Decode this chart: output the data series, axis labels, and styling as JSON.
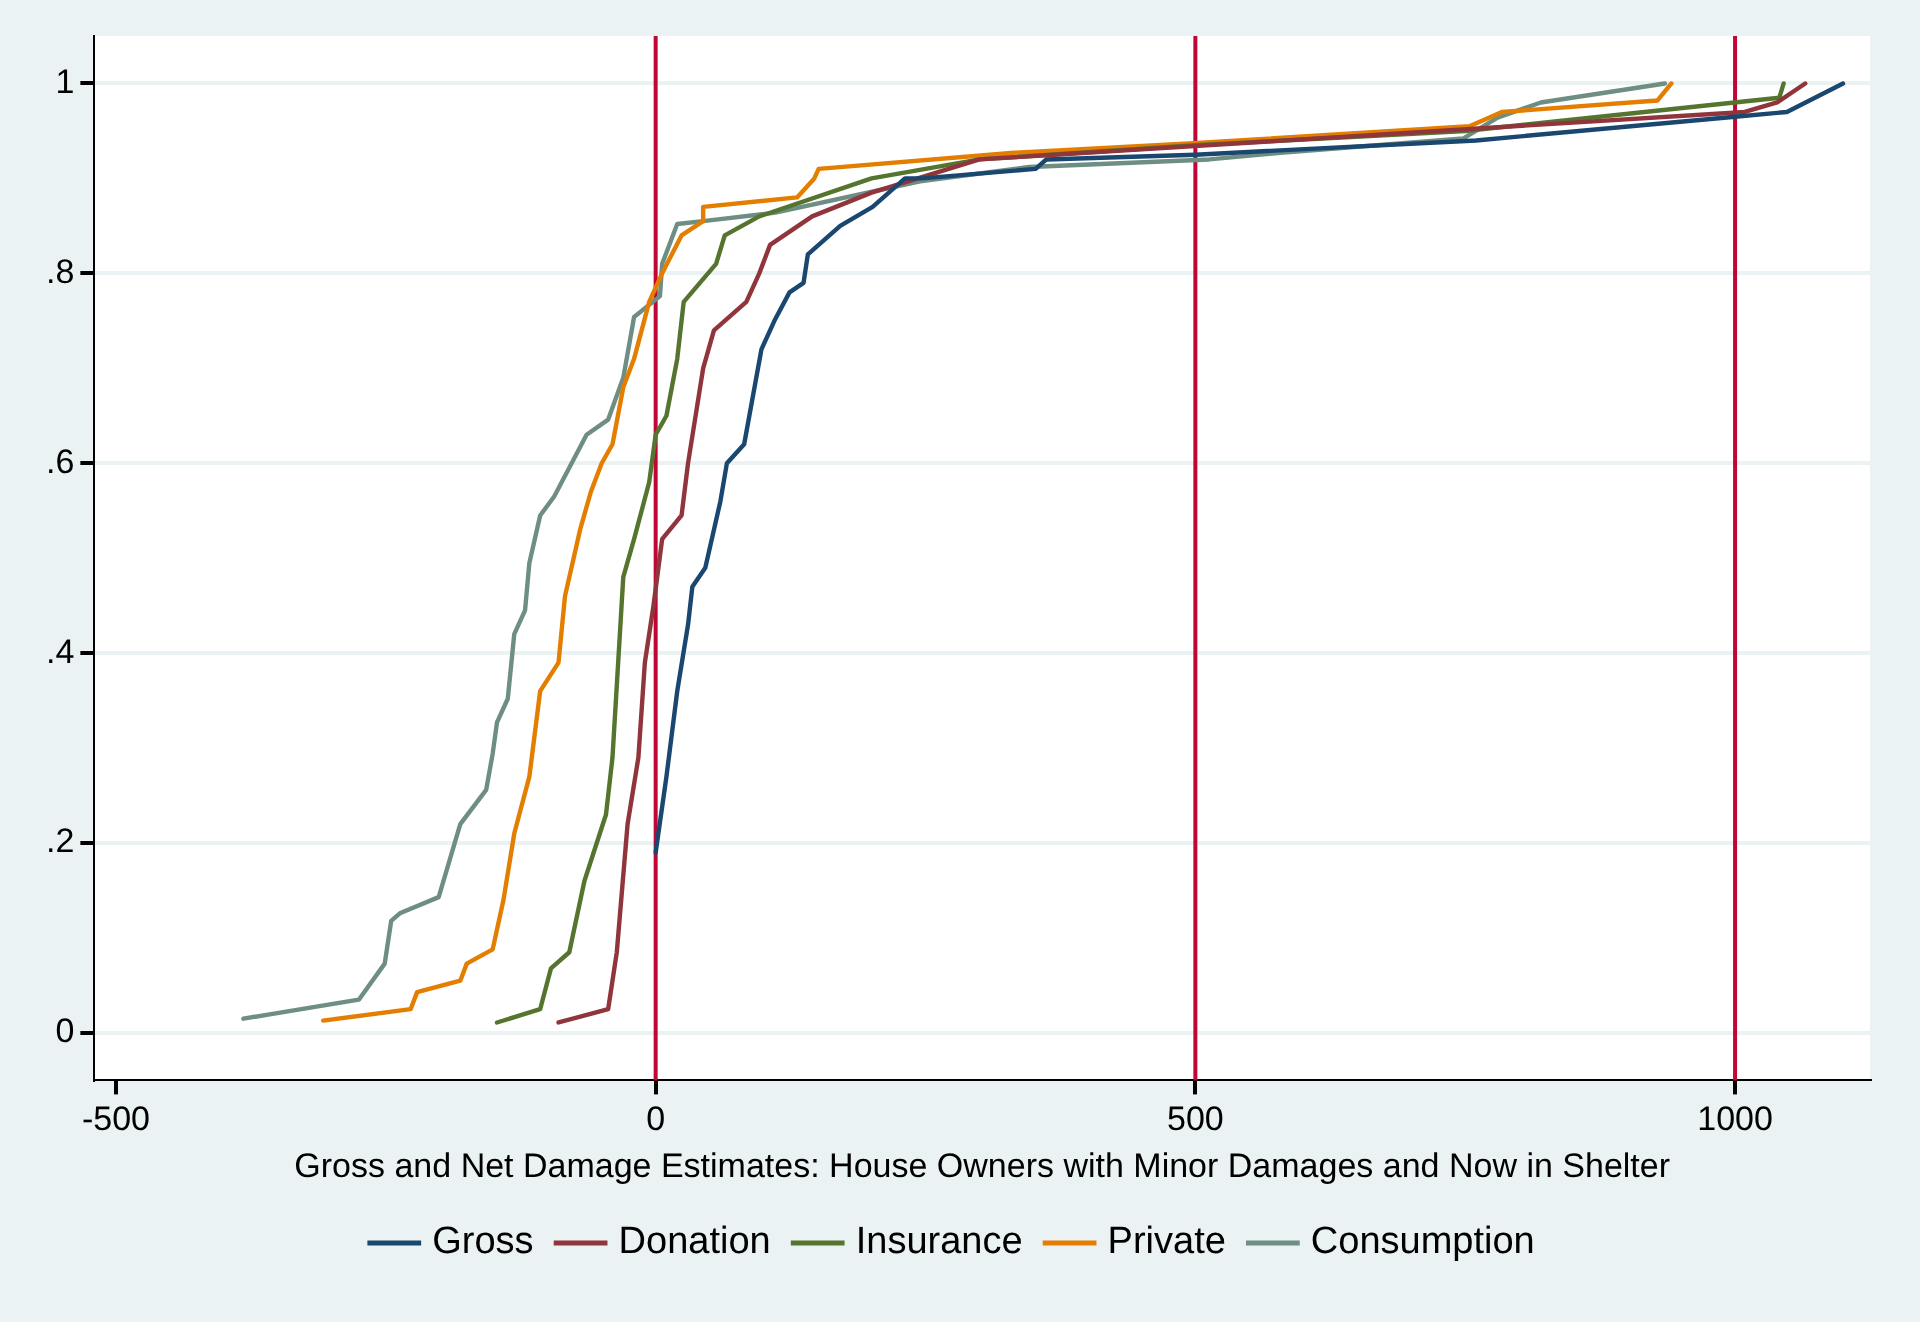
{
  "chart_data": {
    "type": "line",
    "xlabel": "Gross and Net Damage Estimates: House Owners with Minor Damages and Now in Shelter",
    "xlim": [
      -520,
      1125
    ],
    "xticks": [
      -500,
      0,
      500,
      1000
    ],
    "ylim": [
      -0.05,
      1.05
    ],
    "yticks": [
      {
        "value": 0,
        "label": "0"
      },
      {
        "value": 0.2,
        "label": ".2"
      },
      {
        "value": 0.4,
        "label": ".4"
      },
      {
        "value": 0.6,
        "label": ".6"
      },
      {
        "value": 0.8,
        "label": ".8"
      },
      {
        "value": 1,
        "label": "1"
      }
    ],
    "grid": "y",
    "legend": "bottom",
    "marker": "none",
    "line_style": "solid",
    "ref_lines": [
      {
        "axis": "x",
        "value": 0,
        "color": "#c10534"
      },
      {
        "axis": "x",
        "value": 500,
        "color": "#c10534"
      },
      {
        "axis": "x",
        "value": 1000,
        "color": "#c10534"
      }
    ],
    "series": [
      {
        "name": "Gross",
        "color": "#1a476f",
        "x": [
          0,
          10,
          20,
          30,
          34,
          46,
          60,
          66,
          82,
          98,
          110,
          124,
          137,
          141,
          151,
          171,
          201,
          231,
          247,
          352,
          362,
          500,
          760,
          1000,
          1048,
          1100
        ],
        "values": [
          0.19,
          0.27,
          0.36,
          0.43,
          0.47,
          0.49,
          0.56,
          0.6,
          0.62,
          0.72,
          0.75,
          0.78,
          0.79,
          0.82,
          0.83,
          0.85,
          0.87,
          0.9,
          0.9,
          0.91,
          0.92,
          0.925,
          0.94,
          0.965,
          0.97,
          1.0
        ]
      },
      {
        "name": "Donation",
        "color": "#90353b",
        "x": [
          -90,
          -44,
          -36,
          -26,
          -16,
          -10,
          -2,
          6,
          24,
          30,
          44,
          54,
          84,
          96,
          106,
          145,
          200,
          300,
          1009,
          1039,
          1065
        ],
        "values": [
          0.011,
          0.025,
          0.085,
          0.22,
          0.29,
          0.39,
          0.45,
          0.52,
          0.545,
          0.6,
          0.7,
          0.74,
          0.77,
          0.8,
          0.83,
          0.86,
          0.885,
          0.92,
          0.97,
          0.98,
          1.0
        ]
      },
      {
        "name": "Insurance",
        "color": "#55752f",
        "x": [
          -147,
          -107,
          -97,
          -80,
          -66,
          -46,
          -40,
          -30,
          -20,
          -6,
          0,
          10,
          20,
          26,
          56,
          64,
          96,
          200,
          300,
          500,
          750,
          1041,
          1045
        ],
        "values": [
          0.011,
          0.025,
          0.068,
          0.085,
          0.16,
          0.23,
          0.29,
          0.48,
          0.52,
          0.58,
          0.63,
          0.65,
          0.71,
          0.77,
          0.81,
          0.84,
          0.86,
          0.9,
          0.92,
          0.935,
          0.95,
          0.985,
          1.0
        ]
      },
      {
        "name": "Private",
        "color": "#e37e00",
        "x": [
          -308,
          -227,
          -221,
          -181,
          -175,
          -151,
          -141,
          -131,
          -117,
          -107,
          -90,
          -84,
          -70,
          -60,
          -50,
          -40,
          -30,
          -20,
          -6,
          6,
          24,
          44,
          44,
          131,
          147,
          151,
          332,
          498,
          754,
          784,
          928,
          941
        ],
        "values": [
          0.013,
          0.025,
          0.043,
          0.055,
          0.073,
          0.088,
          0.14,
          0.21,
          0.27,
          0.36,
          0.39,
          0.46,
          0.53,
          0.57,
          0.6,
          0.62,
          0.68,
          0.71,
          0.77,
          0.8,
          0.84,
          0.855,
          0.87,
          0.88,
          0.9,
          0.91,
          0.927,
          0.937,
          0.955,
          0.97,
          0.982,
          1.0
        ]
      },
      {
        "name": "Consumption",
        "color": "#6e8e84",
        "x": [
          -382,
          -275,
          -251,
          -245,
          -237,
          -201,
          -181,
          -157,
          -151,
          -147,
          -137,
          -131,
          -121,
          -117,
          -107,
          -94,
          -64,
          -44,
          -30,
          -20,
          4,
          6,
          20,
          44,
          111,
          245,
          346,
          513,
          579,
          748,
          780,
          820,
          935
        ],
        "values": [
          0.015,
          0.035,
          0.073,
          0.118,
          0.126,
          0.143,
          0.22,
          0.256,
          0.294,
          0.327,
          0.352,
          0.42,
          0.445,
          0.495,
          0.545,
          0.565,
          0.63,
          0.646,
          0.69,
          0.754,
          0.776,
          0.81,
          0.852,
          0.855,
          0.864,
          0.897,
          0.912,
          0.92,
          0.927,
          0.942,
          0.964,
          0.98,
          1.0
        ]
      }
    ]
  }
}
